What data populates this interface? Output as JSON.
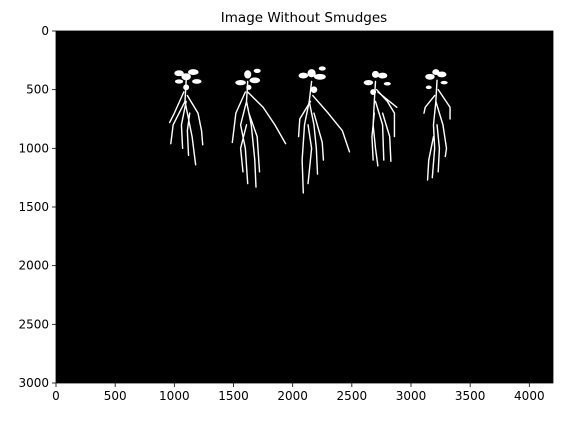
{
  "chart_data": {
    "type": "image",
    "title": "Image Without Smudges",
    "xlim": [
      0,
      4200
    ],
    "ylim": [
      3000,
      0
    ],
    "xticks": [
      0,
      500,
      1000,
      1500,
      2000,
      2500,
      3000,
      3500,
      4000
    ],
    "yticks": [
      0,
      500,
      1000,
      1500,
      2000,
      2500,
      3000
    ]
  }
}
